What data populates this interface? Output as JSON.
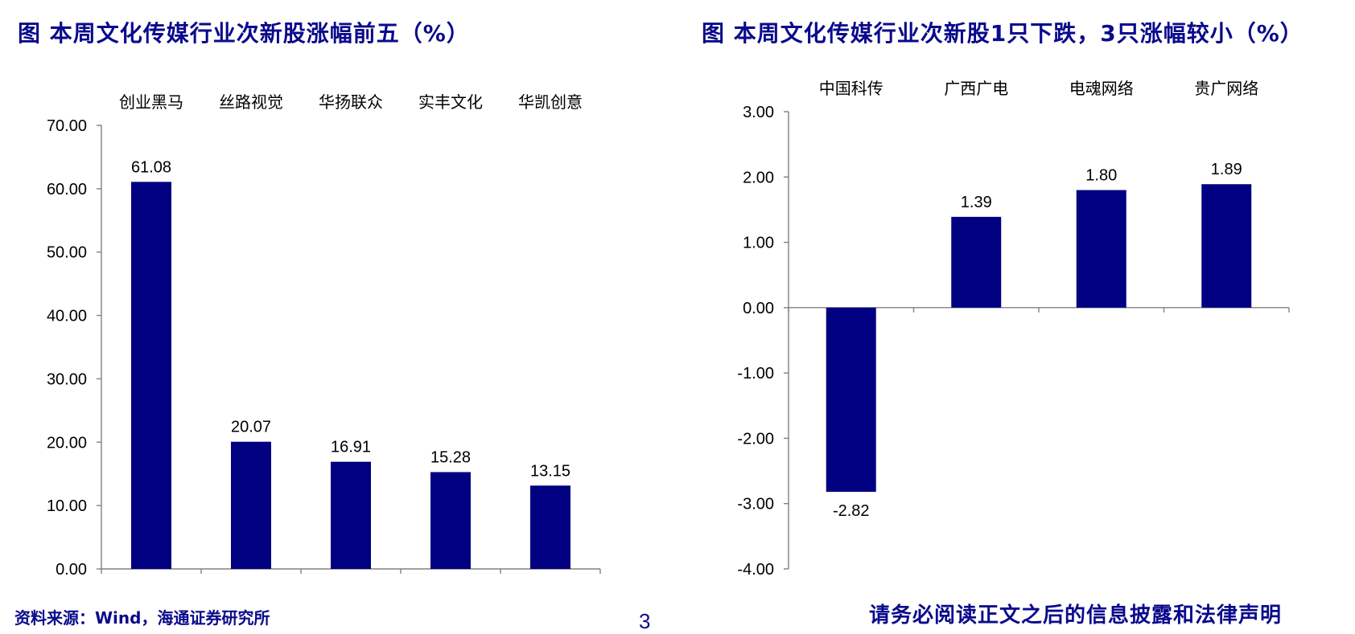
{
  "chart_data": [
    {
      "type": "bar",
      "title": "图 本周文化传媒行业次新股涨幅前五（%）",
      "categories": [
        "创业黑马",
        "丝路视觉",
        "华扬联众",
        "实丰文化",
        "华凯创意"
      ],
      "values": [
        61.08,
        20.07,
        16.91,
        15.28,
        13.15
      ],
      "value_labels": [
        "61.08",
        "20.07",
        "16.91",
        "15.28",
        "13.15"
      ],
      "ylim": [
        0,
        70
      ],
      "yticks": [
        "0.00",
        "10.00",
        "20.00",
        "30.00",
        "40.00",
        "50.00",
        "60.00",
        "70.00"
      ],
      "category_axis_position": "top",
      "color": "#000080"
    },
    {
      "type": "bar",
      "title": "图 本周文化传媒行业次新股1只下跌，3只涨幅较小（%）",
      "categories": [
        "中国科传",
        "广西广电",
        "电魂网络",
        "贵广网络"
      ],
      "values": [
        -2.82,
        1.39,
        1.8,
        1.89
      ],
      "value_labels": [
        "-2.82",
        "1.39",
        "1.80",
        "1.89"
      ],
      "ylim": [
        -4,
        3
      ],
      "yticks": [
        "-4.00",
        "-3.00",
        "-2.00",
        "-1.00",
        "0.00",
        "1.00",
        "2.00",
        "3.00"
      ],
      "category_axis_position": "top",
      "color": "#000080"
    }
  ],
  "footer": {
    "source": "资料来源：Wind，海通证券研究所",
    "page_number": "3",
    "disclaimer": "请务必阅读正文之后的信息披露和法律声明"
  }
}
